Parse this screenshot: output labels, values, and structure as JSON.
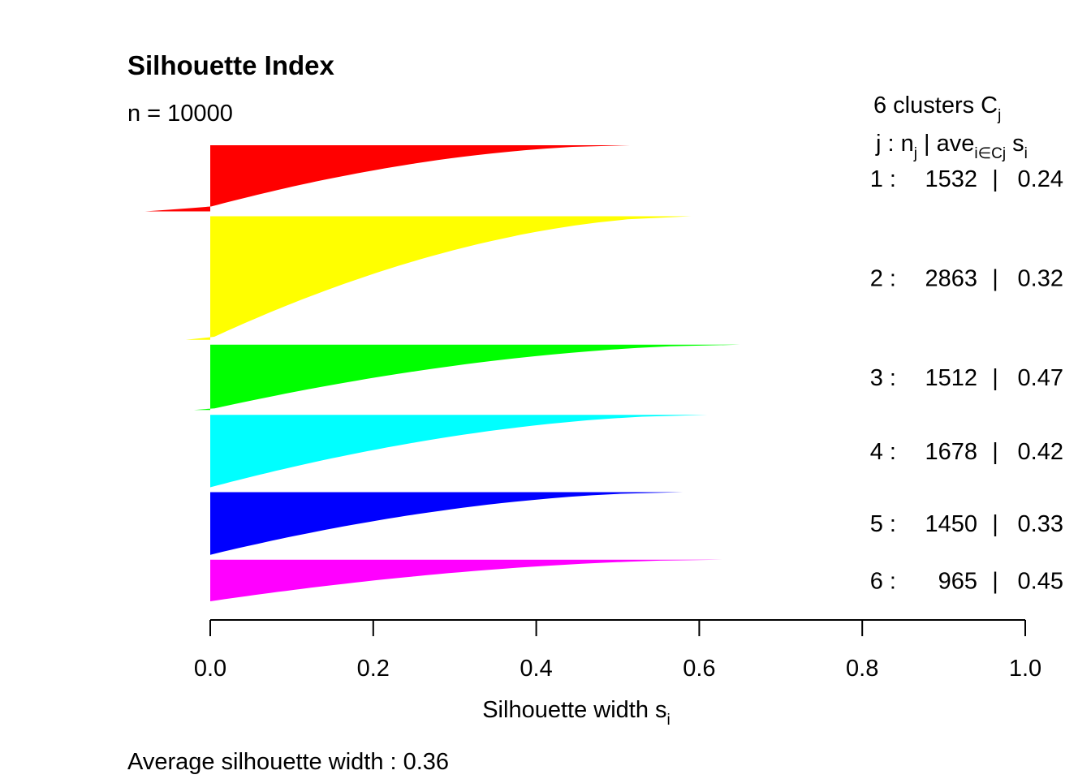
{
  "chart_data": {
    "type": "silhouette",
    "title": "Silhouette Index",
    "n_label": "n = 10000",
    "xlabel": "Silhouette width",
    "xlabel_sub": "i",
    "xlim": [
      0,
      1
    ],
    "x_ticks": [
      0,
      0.2,
      0.4,
      0.6,
      0.8,
      1
    ],
    "x_tick_labels": [
      "0.0",
      "0.2",
      "0.4",
      "0.6",
      "0.8",
      "1.0"
    ],
    "legend_header_1": "6  clusters  C",
    "legend_header_1_sub": "j",
    "legend_header_2": {
      "a": "j :  n",
      "a_sub": "j",
      "b": " | ave",
      "b_sub": "i∈Cj",
      "c": "  s",
      "c_sub": "i"
    },
    "average_label": "Average silhouette width :  0.36",
    "clusters": [
      {
        "j": "1",
        "n": 1532,
        "n_label": "1532",
        "avg_label": "0.24",
        "color": "#FF0000",
        "max_width": 0.515,
        "min_width": -0.08,
        "neg_fraction": 0.07
      },
      {
        "j": "2",
        "n": 2863,
        "n_label": "2863",
        "avg_label": "0.32",
        "color": "#FFFF00",
        "max_width": 0.59,
        "min_width": -0.03,
        "neg_fraction": 0.01
      },
      {
        "j": "3",
        "n": 1512,
        "n_label": "1512",
        "avg_label": "0.47",
        "color": "#00FF00",
        "max_width": 0.65,
        "min_width": -0.02,
        "neg_fraction": 0.01
      },
      {
        "j": "4",
        "n": 1678,
        "n_label": "1678",
        "avg_label": "0.42",
        "color": "#00FFFF",
        "max_width": 0.61,
        "min_width": 0.0,
        "neg_fraction": 0
      },
      {
        "j": "5",
        "n": 1450,
        "n_label": "1450",
        "avg_label": "0.33",
        "color": "#0000FF",
        "max_width": 0.58,
        "min_width": 0.0,
        "neg_fraction": 0
      },
      {
        "j": "6",
        "n": 965,
        "n_label": "965",
        "avg_label": "0.45",
        "color": "#FF00FF",
        "max_width": 0.635,
        "min_width": 0.0,
        "neg_fraction": 0
      }
    ]
  }
}
